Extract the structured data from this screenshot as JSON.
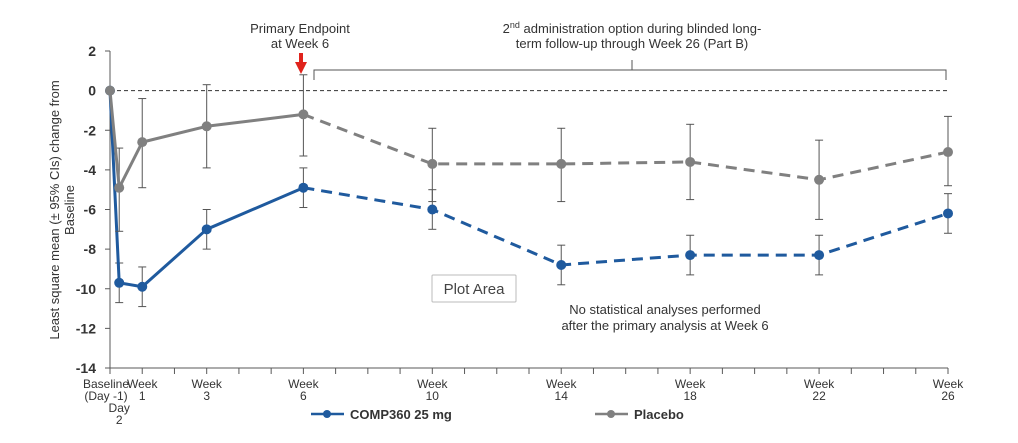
{
  "chart_data": {
    "type": "line",
    "ylabel": "Least square mean (± 95% CIs) change from Baseline",
    "ylim": [
      -14,
      2
    ],
    "y_ticks": [
      2,
      0,
      -2,
      -4,
      -6,
      -8,
      -10,
      -12,
      -14
    ],
    "x_positions_days": [
      0,
      2,
      7,
      21,
      42,
      70,
      98,
      126,
      154,
      182
    ],
    "x_tick_labels": [
      {
        "line1": "Baseline",
        "line2": "(Day -1)"
      },
      {
        "line1": "",
        "line2": "",
        "line3": "Day",
        "line4": "2"
      },
      {
        "line1": "Week",
        "line2": "1"
      },
      {
        "line1": "Week",
        "line2": "3"
      },
      {
        "line1": "Week",
        "line2": "6"
      },
      {
        "line1": "Week",
        "line2": "10"
      },
      {
        "line1": "Week",
        "line2": "14"
      },
      {
        "line1": "Week",
        "line2": "18"
      },
      {
        "line1": "Week",
        "line2": "22"
      },
      {
        "line1": "Week",
        "line2": "26"
      }
    ],
    "minor_tick_days": [
      0,
      7,
      14,
      21,
      28,
      35,
      42,
      49,
      56,
      63,
      70,
      77,
      84,
      91,
      98,
      105,
      112,
      119,
      126,
      133,
      140,
      147,
      154,
      161,
      168,
      175,
      182
    ],
    "reference_line_y": 0,
    "solid_until_day": 42,
    "series": [
      {
        "name": "COMP360 25 mg",
        "color": "#1f5a9e",
        "values": [
          0,
          -9.7,
          -9.9,
          -7.0,
          -4.9,
          -6.0,
          -8.8,
          -8.3,
          -8.3,
          -6.2
        ],
        "ci_low": [
          0,
          -10.7,
          -10.9,
          -8.0,
          -5.9,
          -7.0,
          -9.8,
          -9.3,
          -9.3,
          -7.2
        ],
        "ci_high": [
          0,
          -8.7,
          -8.9,
          -6.0,
          -3.9,
          -5.0,
          -7.8,
          -7.3,
          -7.3,
          -5.2
        ]
      },
      {
        "name": "Placebo",
        "color": "#808080",
        "values": [
          0,
          -4.9,
          -2.6,
          -1.8,
          -1.2,
          -3.7,
          -3.7,
          -3.6,
          -4.5,
          -3.1
        ],
        "ci_low": [
          0,
          -7.1,
          -4.9,
          -3.9,
          -3.3,
          -5.6,
          -5.6,
          -5.5,
          -6.5,
          -4.8
        ],
        "ci_high": [
          0,
          -2.9,
          -0.4,
          0.3,
          0.8,
          -1.9,
          -1.9,
          -1.7,
          -2.5,
          -1.3
        ]
      }
    ],
    "annotations": {
      "primary_line1": "Primary Endpoint",
      "primary_line2": "at Week 6",
      "admin_pre": "2",
      "admin_sup": "nd",
      "admin_line1_rest": " administration option during blinded long-",
      "admin_line2": "term follow-up through Week 26 (Part B)",
      "no_stats_line1": "No statistical analyses performed",
      "no_stats_line2": "after the primary analysis at Week 6",
      "plot_area_label": "Plot Area"
    },
    "legend_position": "bottom"
  }
}
